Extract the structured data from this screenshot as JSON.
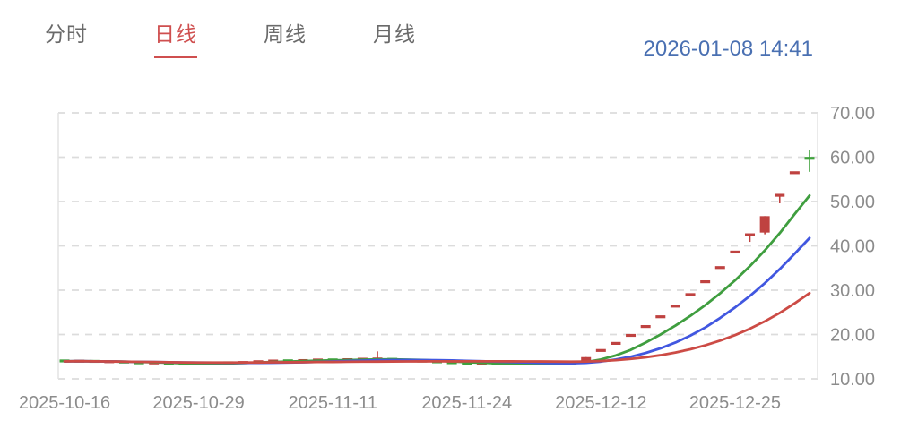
{
  "header": {
    "tabs": [
      {
        "label": "分时",
        "active": false
      },
      {
        "label": "日线",
        "active": true
      },
      {
        "label": "周线",
        "active": false
      },
      {
        "label": "月线",
        "active": false
      }
    ],
    "timestamp": "2026-01-08 14:41"
  },
  "colors": {
    "up": "#bf4240",
    "down": "#3fa23c",
    "ma5": "#3f9e3f",
    "ma10": "#4157e0",
    "ma20": "#cc4b45",
    "tab_accent": "#cf4f4f",
    "timestamp_blue": "#4a70b2",
    "axis_text": "#8c8c8c",
    "grid": "#dcdcdc",
    "border": "#e3e3e3"
  },
  "chart_data": {
    "type": "candlestick",
    "note": "Chinese convention: red candle = up day, green candle = down day. Flat period ~13-14.5 followed by a run of consecutive ~10% limit-up one-line candles rising to ~60.",
    "y_axis": {
      "tick_labels": [
        "70.00",
        "60.00",
        "50.00",
        "40.00",
        "30.00",
        "20.00",
        "10.00"
      ],
      "min": 10,
      "max": 70,
      "grid": "dashed"
    },
    "x_axis": {
      "tick_labels": [
        "2025-10-16",
        "2025-10-29",
        "2025-11-11",
        "2025-11-24",
        "2025-12-12",
        "2025-12-25"
      ],
      "tick_candle_indices": [
        0,
        9,
        18,
        27,
        36,
        45
      ]
    },
    "moving_averages": [
      {
        "name": "MA5",
        "period": 5,
        "color_key": "ma5"
      },
      {
        "name": "MA10",
        "period": 10,
        "color_key": "ma10"
      },
      {
        "name": "MA20",
        "period": 20,
        "color_key": "ma20"
      }
    ],
    "candles_columns": [
      "open",
      "high",
      "low",
      "close"
    ],
    "candles": [
      [
        14.15,
        14.25,
        13.85,
        13.95
      ],
      [
        13.95,
        14.1,
        13.85,
        14.05
      ],
      [
        14.05,
        14.1,
        13.8,
        13.85
      ],
      [
        13.85,
        14.0,
        13.8,
        13.9
      ],
      [
        13.9,
        13.95,
        13.6,
        13.7
      ],
      [
        13.7,
        13.75,
        13.45,
        13.55
      ],
      [
        13.55,
        13.7,
        13.5,
        13.65
      ],
      [
        13.65,
        13.7,
        13.35,
        13.4
      ],
      [
        13.4,
        13.5,
        13.2,
        13.3
      ],
      [
        13.3,
        13.55,
        13.25,
        13.5
      ],
      [
        13.5,
        13.7,
        13.45,
        13.65
      ],
      [
        13.65,
        13.7,
        13.5,
        13.6
      ],
      [
        13.6,
        13.85,
        13.55,
        13.8
      ],
      [
        13.8,
        14.0,
        13.75,
        13.95
      ],
      [
        13.95,
        14.15,
        13.9,
        14.1
      ],
      [
        14.1,
        14.15,
        13.95,
        14.05
      ],
      [
        14.05,
        14.25,
        14.0,
        14.2
      ],
      [
        14.2,
        14.35,
        14.15,
        14.3
      ],
      [
        14.3,
        14.35,
        14.15,
        14.25
      ],
      [
        14.25,
        14.45,
        14.2,
        14.4
      ],
      [
        14.4,
        14.5,
        14.3,
        14.45
      ],
      [
        14.45,
        16.2,
        14.3,
        14.5
      ],
      [
        14.5,
        14.55,
        14.25,
        14.3
      ],
      [
        14.3,
        14.35,
        14.0,
        14.1
      ],
      [
        14.1,
        14.15,
        13.85,
        13.95
      ],
      [
        13.95,
        14.0,
        13.65,
        13.75
      ],
      [
        13.75,
        13.8,
        13.45,
        13.55
      ],
      [
        13.55,
        13.6,
        13.35,
        13.45
      ],
      [
        13.45,
        13.55,
        13.35,
        13.5
      ],
      [
        13.5,
        13.55,
        13.25,
        13.35
      ],
      [
        13.35,
        13.5,
        13.3,
        13.45
      ],
      [
        13.45,
        13.5,
        13.3,
        13.4
      ],
      [
        13.4,
        13.55,
        13.35,
        13.5
      ],
      [
        13.5,
        13.6,
        13.45,
        13.55
      ],
      [
        13.5,
        13.6,
        13.45,
        13.55
      ],
      [
        13.6,
        14.9,
        13.5,
        14.9
      ],
      [
        16.4,
        16.4,
        16.4,
        16.4
      ],
      [
        18.0,
        18.0,
        18.0,
        18.0
      ],
      [
        19.8,
        19.8,
        19.8,
        19.8
      ],
      [
        21.8,
        21.8,
        21.8,
        21.8
      ],
      [
        24.0,
        24.0,
        24.0,
        24.0
      ],
      [
        26.4,
        26.4,
        26.4,
        26.4
      ],
      [
        29.0,
        29.0,
        29.0,
        29.0
      ],
      [
        31.9,
        31.9,
        31.9,
        31.9
      ],
      [
        35.1,
        35.1,
        35.1,
        35.1
      ],
      [
        38.6,
        38.6,
        38.6,
        38.6
      ],
      [
        42.5,
        42.5,
        40.9,
        42.5
      ],
      [
        43.0,
        46.7,
        42.6,
        46.7
      ],
      [
        51.4,
        51.4,
        49.6,
        51.4
      ],
      [
        56.5,
        56.5,
        56.5,
        56.5
      ],
      [
        59.9,
        61.6,
        56.7,
        59.6
      ]
    ]
  }
}
